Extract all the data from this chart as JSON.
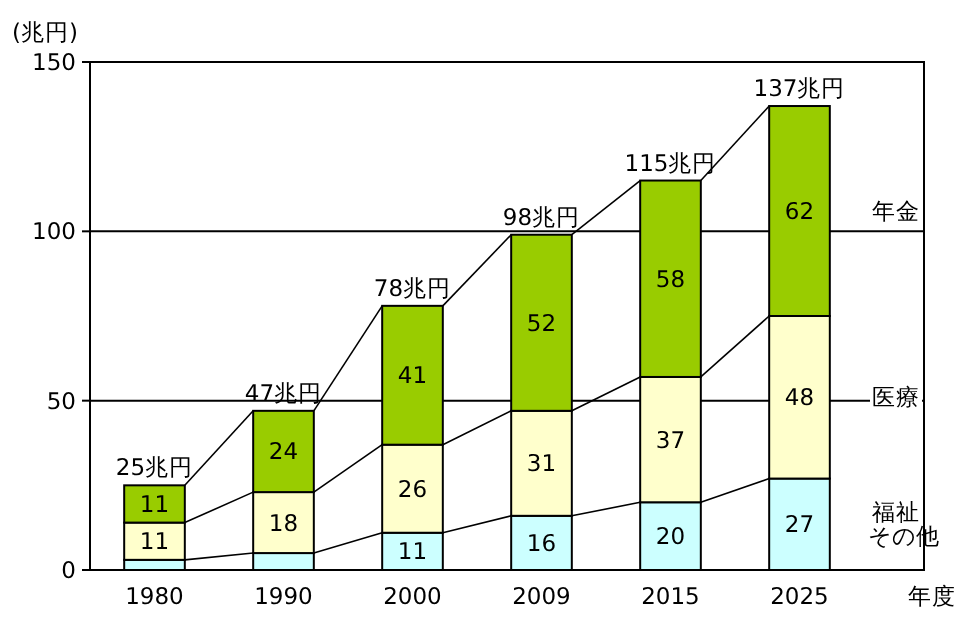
{
  "chart_data": {
    "type": "bar",
    "stacked": true,
    "ylabel": "(兆円)",
    "xlabel": "年度",
    "categories": [
      "1980",
      "1990",
      "2000",
      "2009",
      "2015",
      "2025"
    ],
    "series": [
      {
        "name": "福祉その他",
        "color": "#ccffff",
        "values": [
          3,
          5,
          11,
          16,
          20,
          27
        ],
        "value_labels": [
          null,
          null,
          "11",
          "16",
          "20",
          "27"
        ]
      },
      {
        "name": "医療",
        "color": "#ffffcc",
        "values": [
          11,
          18,
          26,
          31,
          37,
          48
        ],
        "value_labels": [
          "11",
          "18",
          "26",
          "31",
          "37",
          "48"
        ]
      },
      {
        "name": "年金",
        "color": "#99cc00",
        "values": [
          11,
          24,
          41,
          52,
          58,
          62
        ],
        "value_labels": [
          "11",
          "24",
          "41",
          "52",
          "58",
          "62"
        ]
      }
    ],
    "totals": [
      "25兆円",
      "47兆円",
      "78兆円",
      "98兆円",
      "115兆円",
      "137兆円"
    ],
    "ylim": [
      0,
      150
    ],
    "yticks": [
      0,
      50,
      100,
      150
    ],
    "grid": "y",
    "legend": "right"
  }
}
